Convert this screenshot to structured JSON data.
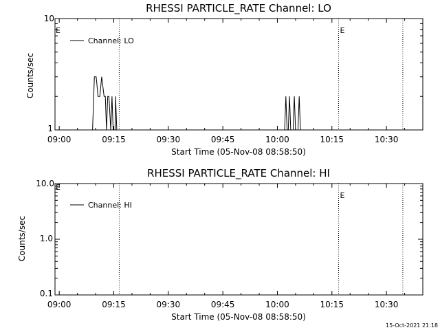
{
  "chart_data": [
    {
      "type": "line",
      "title": "RHESSI PARTICLE_RATE Channel: LO",
      "xlabel": "Start Time (05-Nov-08 08:58:50)",
      "ylabel": "Counts/sec",
      "yscale": "log",
      "ylim": [
        1,
        10
      ],
      "xlim": [
        "08:58:50",
        "10:40:00"
      ],
      "ytick_labels": [
        "1",
        "10"
      ],
      "xtick_labels": [
        "09:00",
        "09:15",
        "09:30",
        "09:45",
        "10:00",
        "10:15",
        "10:30"
      ],
      "legend": {
        "entry": "Channel: LO",
        "placement": "top-left"
      },
      "markers": [
        {
          "time": "09:16:30",
          "label": ""
        },
        {
          "time": "10:16:50",
          "label": "E"
        },
        {
          "time": "10:34:30",
          "label": ""
        }
      ],
      "start_marker_label": "E",
      "series": [
        {
          "name": "Channel: LO",
          "points": [
            [
              "09:08:50",
              1
            ],
            [
              "09:09:10",
              1
            ],
            [
              "09:09:40",
              3
            ],
            [
              "09:10:10",
              3
            ],
            [
              "09:10:40",
              2
            ],
            [
              "09:11:10",
              2
            ],
            [
              "09:11:40",
              3
            ],
            [
              "09:12:20",
              2
            ],
            [
              "09:12:40",
              2
            ],
            [
              "09:13:00",
              1
            ],
            [
              "09:13:20",
              2
            ],
            [
              "09:13:40",
              2
            ],
            [
              "09:14:10",
              1
            ],
            [
              "09:14:30",
              2
            ],
            [
              "09:14:50",
              1
            ],
            [
              "09:15:20",
              1
            ],
            [
              "09:15:30",
              2
            ],
            [
              "09:15:50",
              1
            ],
            [
              "09:16:00",
              1
            ],
            [
              "10:02:00",
              1
            ],
            [
              "10:02:20",
              2
            ],
            [
              "10:02:40",
              1
            ],
            [
              "10:03:00",
              1
            ],
            [
              "10:03:20",
              2
            ],
            [
              "10:03:40",
              1
            ],
            [
              "10:04:20",
              1
            ],
            [
              "10:04:40",
              2
            ],
            [
              "10:05:00",
              1
            ],
            [
              "10:05:40",
              1
            ],
            [
              "10:06:00",
              2
            ],
            [
              "10:06:20",
              1
            ]
          ]
        }
      ]
    },
    {
      "type": "line",
      "title": "RHESSI PARTICLE_RATE Channel: HI",
      "xlabel": "Start Time (05-Nov-08 08:58:50)",
      "ylabel": "Counts/sec",
      "yscale": "log",
      "ylim": [
        0.1,
        10
      ],
      "xlim": [
        "08:58:50",
        "10:40:00"
      ],
      "ytick_labels": [
        "0.1",
        "1.0",
        "10.0"
      ],
      "xtick_labels": [
        "09:00",
        "09:15",
        "09:30",
        "09:45",
        "10:00",
        "10:15",
        "10:30"
      ],
      "legend": {
        "entry": "Channel: HI",
        "placement": "top-left"
      },
      "markers": [
        {
          "time": "09:16:30",
          "label": ""
        },
        {
          "time": "10:16:50",
          "label": "E"
        },
        {
          "time": "10:34:30",
          "label": ""
        }
      ],
      "start_marker_label": "E",
      "series": [
        {
          "name": "Channel: HI",
          "points": []
        }
      ]
    }
  ],
  "footer": {
    "timestamp": "15-Oct-2021 21:18"
  }
}
